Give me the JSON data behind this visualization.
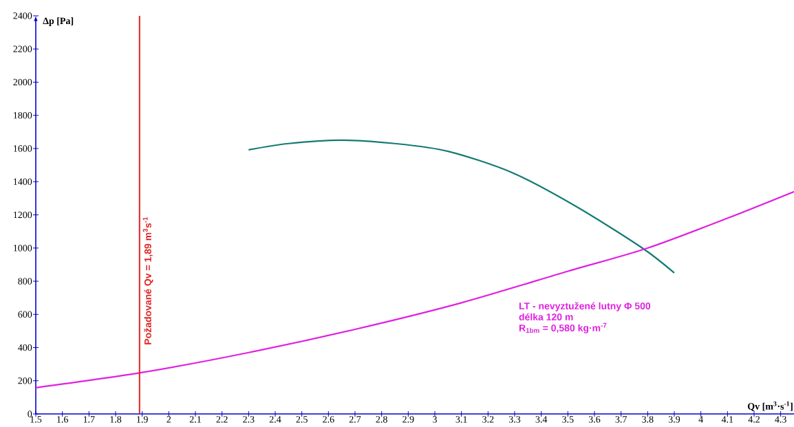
{
  "chart_data": {
    "type": "line",
    "xlabel": "Qv [m$^{3}$·s$^{-1}$]",
    "ylabel": "Δp [Pa]",
    "xlim": [
      1.5,
      4.35
    ],
    "ylim": [
      0,
      2400
    ],
    "xticks": [
      1.5,
      1.6,
      1.7,
      1.8,
      1.9,
      2,
      2.1,
      2.2,
      2.3,
      2.4,
      2.5,
      2.6,
      2.7,
      2.8,
      2.9,
      3,
      3.1,
      3.2,
      3.3,
      3.4,
      3.5,
      3.6,
      3.7,
      3.8,
      3.9,
      4,
      4.1,
      4.2,
      4.3
    ],
    "yticks": [
      0,
      200,
      400,
      600,
      800,
      1000,
      1200,
      1400,
      1600,
      1800,
      2000,
      2200,
      2400
    ],
    "marker": "none",
    "line_style": "solid",
    "series": [
      {
        "color": "#137a73",
        "x": [
          2.3,
          2.45,
          2.65,
          2.85,
          3.05,
          3.29,
          3.53,
          3.78,
          3.9
        ],
        "values": [
          1592,
          1630,
          1650,
          1630,
          1583,
          1455,
          1252,
          1000,
          850
        ]
      },
      {
        "name": "LT - nevyztužené lutny Φ 500",
        "color": "#e020e0",
        "x": [
          1.5,
          1.9,
          2.3,
          2.7,
          3.1,
          3.5,
          3.8,
          4.1,
          4.35
        ],
        "values": [
          158,
          250,
          370,
          510,
          670,
          860,
          1000,
          1180,
          1340
        ]
      }
    ],
    "annotations": [
      "délka 120 m",
      "R$_{1bm}$ = 0,580 kg·m$^{-7}$"
    ],
    "ref_lines": [
      {
        "axis": "x",
        "value": 1.89,
        "label": "Požadované Qv = 1,89 m$^{3}$s$^{-1}$",
        "color": "#e02020"
      }
    ]
  }
}
